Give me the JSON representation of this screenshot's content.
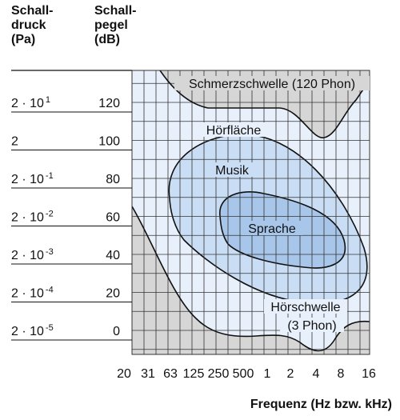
{
  "headers": {
    "pressure": [
      "Schall-",
      "druck",
      "(Pa)"
    ],
    "level": [
      "Schall-",
      "pegel",
      "(dB)"
    ]
  },
  "rows": [
    {
      "pa": "2 · 10",
      "exp": "1",
      "db": 120
    },
    {
      "pa": "2",
      "exp": "",
      "db": 100
    },
    {
      "pa": "2 · 10",
      "exp": "-1",
      "db": 80
    },
    {
      "pa": "2 · 10",
      "exp": "-2",
      "db": 60
    },
    {
      "pa": "2 · 10",
      "exp": "-3",
      "db": 40
    },
    {
      "pa": "2 · 10",
      "exp": "-4",
      "db": 20
    },
    {
      "pa": "2 · 10",
      "exp": "-5",
      "db": 0
    }
  ],
  "x_labels": [
    "20",
    "31",
    "63",
    "125",
    "250",
    "500",
    "1",
    "2",
    "4",
    "8",
    "16"
  ],
  "regions": {
    "pain": "Schmerzschwelle (120 Phon)",
    "area": "Hörfläche",
    "music": "Musik",
    "speech": "Sprache",
    "threshold": [
      "Hörschwelle",
      "(3 Phon)"
    ]
  },
  "x_title": "Frequenz (Hz bzw. kHz)"
}
